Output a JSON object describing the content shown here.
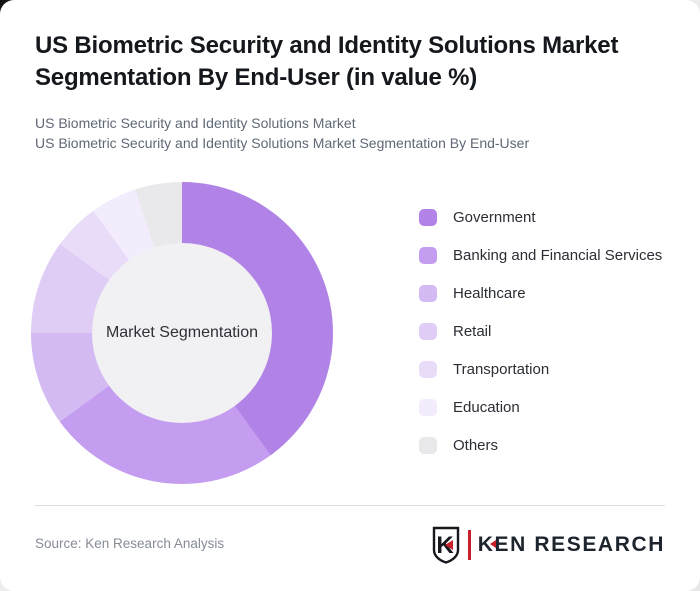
{
  "header": {
    "title": "US Biometric Security and Identity Solutions Market Segmentation By End-User (in value %)",
    "subtitle_line1": "US Biometric Security and Identity Solutions Market",
    "subtitle_line2": "US Biometric Security and Identity Solutions Market Segmentation By End-User"
  },
  "chart_data": {
    "type": "pie",
    "variant": "donut",
    "title": "US Biometric Security and Identity Solutions Market Segmentation By End-User (in value %)",
    "center_label": "Market Segmentation",
    "legend_position": "right",
    "start_angle_deg": 0,
    "direction": "clockwise",
    "inner_hole_color": "#f1f0f2",
    "units": "value %",
    "segments": [
      {
        "label": "Government",
        "value": 40,
        "color": "#b183e7"
      },
      {
        "label": "Banking and Financial Services",
        "value": 25,
        "color": "#c49df0"
      },
      {
        "label": "Healthcare",
        "value": 10,
        "color": "#d4baf2"
      },
      {
        "label": "Retail",
        "value": 10,
        "color": "#dfcdf6"
      },
      {
        "label": "Transportation",
        "value": 5,
        "color": "#e9dcf9"
      },
      {
        "label": "Education",
        "value": 5,
        "color": "#f3ecfc"
      },
      {
        "label": "Others",
        "value": 5,
        "color": "#e9e8ea"
      }
    ]
  },
  "footer": {
    "source": "Source: Ken Research Analysis",
    "logo": {
      "shield_letter": "K",
      "brand_k": "K",
      "brand_rest": "EN RESEARCH",
      "accent_color": "#c8202a"
    }
  }
}
